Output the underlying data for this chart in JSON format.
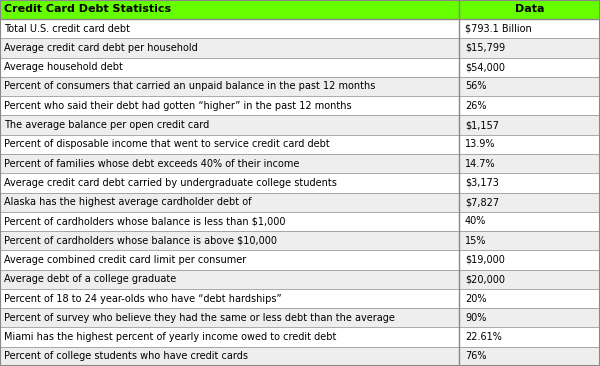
{
  "title_left": "Credit Card Debt Statistics",
  "title_right": "Data",
  "header_bg": "#66FF00",
  "header_text_color": "#000000",
  "row_bg_even": "#FFFFFF",
  "row_bg_odd": "#EEEEEE",
  "border_color": "#888888",
  "rows": [
    [
      "Total U.S. credit card debt",
      "$793.1 Billion"
    ],
    [
      "Average credit card debt per household",
      "$15,799"
    ],
    [
      "Average household debt",
      "$54,000"
    ],
    [
      "Percent of consumers that carried an unpaid balance in the past 12 months",
      "56%"
    ],
    [
      "Percent who said their debt had gotten “higher” in the past 12 months",
      "26%"
    ],
    [
      "The average balance per open credit card",
      "$1,157"
    ],
    [
      "Percent of disposable income that went to service credit card debt",
      "13.9%"
    ],
    [
      "Percent of families whose debt exceeds 40% of their income",
      "14.7%"
    ],
    [
      "Average credit card debt carried by undergraduate college students",
      "$3,173"
    ],
    [
      "Alaska has the highest average cardholder debt of",
      "$7,827"
    ],
    [
      "Percent of cardholders whose balance is less than $1,000",
      "40%"
    ],
    [
      "Percent of cardholders whose balance is above $10,000",
      "15%"
    ],
    [
      "Average combined credit card limit per consumer",
      "$19,000"
    ],
    [
      "Average debt of a college graduate",
      "$20,000"
    ],
    [
      "Percent of 18 to 24 year-olds who have “debt hardships”",
      "20%"
    ],
    [
      "Percent of survey who believe they had the same or less debt than the average",
      "90%"
    ],
    [
      "Miami has the highest percent of yearly income owed to credit debt",
      "22.61%"
    ],
    [
      "Percent of college students who have credit cards",
      "76%"
    ]
  ],
  "col_split": 0.765,
  "font_size": 7.0,
  "header_font_size": 8.0,
  "fig_width": 6.0,
  "fig_height": 3.66,
  "dpi": 100
}
